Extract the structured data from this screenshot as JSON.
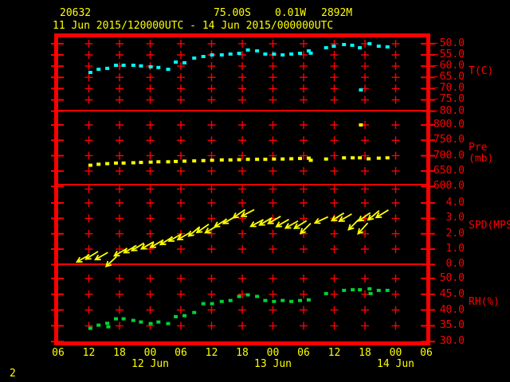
{
  "header": {
    "station_id": "20632",
    "latitude": "75.00S",
    "longitude": "0.01W",
    "elevation": "2892M",
    "period": "11 Jun 2015/120000UTC - 14 Jun 2015/000000UTC"
  },
  "footer": {
    "page_number": "2"
  },
  "colors": {
    "background": "#000000",
    "frame": "#ff0000",
    "axis_text": "#ff0000",
    "header_text": "#ffff00",
    "temperature": "#00ffff",
    "pressure": "#ffff00",
    "wind": "#ffff00",
    "humidity": "#00d435"
  },
  "chart_data": {
    "type": "scatter",
    "subtype": "station-meteogram-4-panel",
    "title": "20632  75.00S 0.01W 2892M  11 Jun 2015/120000UTC - 14 Jun 2015/000000UTC",
    "x_axis": {
      "description": "time, hours from 06UTC 11 Jun 2015 (left edge) to 06UTC 14 Jun 2015 (right edge)",
      "grid_hours": [
        6,
        12,
        18,
        24,
        30,
        36,
        42,
        48,
        54,
        60,
        66
      ],
      "hour_labels": [
        {
          "t": 0,
          "label": "06"
        },
        {
          "t": 6,
          "label": "12"
        },
        {
          "t": 12,
          "label": "18"
        },
        {
          "t": 18,
          "label": "00"
        },
        {
          "t": 24,
          "label": "06"
        },
        {
          "t": 30,
          "label": "12"
        },
        {
          "t": 36,
          "label": "18"
        },
        {
          "t": 42,
          "label": "00"
        },
        {
          "t": 48,
          "label": "06"
        },
        {
          "t": 54,
          "label": "12"
        },
        {
          "t": 60,
          "label": "18"
        },
        {
          "t": 66,
          "label": "00"
        },
        {
          "t": 72,
          "label": "06"
        }
      ],
      "date_labels": [
        {
          "t": 18,
          "label": "12 Jun"
        },
        {
          "t": 42,
          "label": "13 Jun"
        },
        {
          "t": 66,
          "label": "14 Jun"
        }
      ]
    },
    "panels": [
      {
        "id": "temperature",
        "unit_label": "T(C)",
        "color": "#00ffff",
        "marker": "square",
        "top_value": -47.2,
        "bottom_value": -79.8,
        "ticks": [
          {
            "value": -50,
            "label": "-50.0"
          },
          {
            "value": -55,
            "label": "-55.0"
          },
          {
            "value": -60,
            "label": "-60.0"
          },
          {
            "value": -65,
            "label": "-65.0"
          },
          {
            "value": -70,
            "label": "-70.0"
          },
          {
            "value": -75,
            "label": "-75.0"
          },
          {
            "value": -80,
            "label": "-80.0"
          }
        ],
        "grid_rows": [
          -50,
          -55,
          -60,
          -65,
          -70,
          -75
        ],
        "points": [
          [
            6.3,
            -62.8
          ],
          [
            7.9,
            -61.4
          ],
          [
            9.6,
            -61.0
          ],
          [
            11.3,
            -59.6
          ],
          [
            12.8,
            -59.6
          ],
          [
            14.7,
            -59.6
          ],
          [
            16.2,
            -59.9
          ],
          [
            18.1,
            -60.3
          ],
          [
            19.6,
            -60.6
          ],
          [
            21.5,
            -61.4
          ],
          [
            23.0,
            -58.2
          ],
          [
            24.7,
            -58.5
          ],
          [
            26.6,
            -56.4
          ],
          [
            28.4,
            -55.7
          ],
          [
            30.1,
            -55.0
          ],
          [
            32.0,
            -55.0
          ],
          [
            33.7,
            -54.6
          ],
          [
            35.4,
            -54.3
          ],
          [
            37.1,
            -52.8
          ],
          [
            38.9,
            -53.2
          ],
          [
            40.5,
            -54.6
          ],
          [
            42.2,
            -54.6
          ],
          [
            43.9,
            -55.0
          ],
          [
            45.6,
            -54.6
          ],
          [
            47.3,
            -54.3
          ],
          [
            49.0,
            -53.2
          ],
          [
            49.4,
            -54.2
          ],
          [
            52.4,
            -51.8
          ],
          [
            53.9,
            -51.1
          ],
          [
            55.9,
            -50.4
          ],
          [
            57.5,
            -50.7
          ],
          [
            59.0,
            -51.8
          ],
          [
            60.9,
            -50.0
          ],
          [
            62.7,
            -51.1
          ],
          [
            64.4,
            -51.4
          ]
        ],
        "outliers": [
          [
            59.2,
            -70.6
          ]
        ]
      },
      {
        "id": "pressure",
        "unit_label": "Pre (mb)",
        "color": "#ffff00",
        "marker": "square",
        "top_value": 846.6,
        "bottom_value": 605.7,
        "ticks": [
          {
            "value": 800,
            "label": "800.0"
          },
          {
            "value": 750,
            "label": "750.0"
          },
          {
            "value": 700,
            "label": "700.0"
          },
          {
            "value": 650,
            "label": "650.0"
          },
          {
            "value": 600,
            "label": "600.0"
          }
        ],
        "grid_rows": [
          800,
          750,
          700,
          650
        ],
        "points": [
          [
            6.3,
            669
          ],
          [
            7.9,
            672
          ],
          [
            9.6,
            674
          ],
          [
            11.3,
            676
          ],
          [
            12.8,
            676
          ],
          [
            14.7,
            677
          ],
          [
            16.2,
            678
          ],
          [
            18.1,
            679
          ],
          [
            19.6,
            680
          ],
          [
            21.5,
            680
          ],
          [
            23.0,
            681
          ],
          [
            24.7,
            682
          ],
          [
            26.6,
            683
          ],
          [
            28.4,
            684
          ],
          [
            30.1,
            685
          ],
          [
            32.0,
            686
          ],
          [
            33.7,
            686
          ],
          [
            35.4,
            687
          ],
          [
            37.1,
            688
          ],
          [
            38.9,
            688
          ],
          [
            40.5,
            688
          ],
          [
            42.2,
            689
          ],
          [
            43.9,
            689
          ],
          [
            45.6,
            690
          ],
          [
            47.3,
            691
          ],
          [
            49.0,
            692
          ],
          [
            49.4,
            685
          ],
          [
            52.4,
            689
          ],
          [
            55.9,
            693
          ],
          [
            57.6,
            693
          ],
          [
            59.0,
            693
          ],
          [
            60.7,
            690
          ],
          [
            62.7,
            692
          ],
          [
            64.4,
            693
          ]
        ],
        "outliers": [
          [
            59.2,
            800
          ]
        ]
      },
      {
        "id": "wind_speed",
        "unit_label": "SPD(MPS)",
        "color": "#ffff00",
        "marker": "arrow",
        "top_value": 5.19,
        "bottom_value": 0.02,
        "ticks": [
          {
            "value": 4,
            "label": "4.0"
          },
          {
            "value": 3,
            "label": "3.0"
          },
          {
            "value": 2,
            "label": "2.0"
          },
          {
            "value": 1,
            "label": "1.0"
          },
          {
            "value": 0,
            "label": "0.0"
          }
        ],
        "grid_rows": [
          4.9,
          4,
          3,
          2,
          1
        ],
        "points": [
          [
            4.9,
            0.4,
            150
          ],
          [
            6.6,
            0.6,
            148
          ],
          [
            8.5,
            0.55,
            150
          ],
          [
            10.4,
            0.2,
            137
          ],
          [
            12.2,
            0.8,
            150
          ],
          [
            14.1,
            1.0,
            150
          ],
          [
            15.6,
            1.15,
            148
          ],
          [
            17.5,
            1.25,
            150
          ],
          [
            19.3,
            1.35,
            150
          ],
          [
            21.2,
            1.55,
            148
          ],
          [
            22.9,
            1.75,
            150
          ],
          [
            24.6,
            1.85,
            150
          ],
          [
            26.6,
            2.15,
            140
          ],
          [
            28.3,
            2.35,
            145
          ],
          [
            30.0,
            2.3,
            150
          ],
          [
            31.8,
            2.7,
            148
          ],
          [
            33.5,
            2.9,
            150
          ],
          [
            35.4,
            3.3,
            145
          ],
          [
            37.1,
            3.35,
            152
          ],
          [
            38.9,
            2.7,
            152
          ],
          [
            40.6,
            2.8,
            150
          ],
          [
            42.3,
            2.9,
            150
          ],
          [
            43.9,
            2.7,
            150
          ],
          [
            45.7,
            2.6,
            150
          ],
          [
            47.4,
            2.6,
            148
          ],
          [
            48.4,
            2.35,
            135
          ],
          [
            51.5,
            2.9,
            155
          ],
          [
            54.7,
            3.1,
            148
          ],
          [
            56.2,
            3.05,
            150
          ],
          [
            57.8,
            2.6,
            135
          ],
          [
            59.6,
            2.35,
            132
          ],
          [
            59.9,
            3.1,
            145
          ],
          [
            61.7,
            3.2,
            140
          ],
          [
            63.4,
            3.3,
            148
          ]
        ],
        "outliers": []
      },
      {
        "id": "humidity",
        "unit_label": "RH(%)",
        "color": "#00d435",
        "marker": "square",
        "top_value": 54.5,
        "bottom_value": 30.05,
        "ticks": [
          {
            "value": 50,
            "label": "50.0"
          },
          {
            "value": 45,
            "label": "45.0"
          },
          {
            "value": 40,
            "label": "40.0"
          },
          {
            "value": 35,
            "label": "35.0"
          },
          {
            "value": 30,
            "label": "30.0"
          }
        ],
        "grid_rows": [
          50,
          45,
          40,
          35
        ],
        "points": [
          [
            6.3,
            34.2
          ],
          [
            7.9,
            35.2
          ],
          [
            9.6,
            35.8
          ],
          [
            9.8,
            34.7
          ],
          [
            11.3,
            37.2
          ],
          [
            12.8,
            37.2
          ],
          [
            14.7,
            36.7
          ],
          [
            16.2,
            36.2
          ],
          [
            18.1,
            35.7
          ],
          [
            19.6,
            36.2
          ],
          [
            21.5,
            35.7
          ],
          [
            23.0,
            37.9
          ],
          [
            24.7,
            38.2
          ],
          [
            26.6,
            39.2
          ],
          [
            28.4,
            42.0
          ],
          [
            30.1,
            42.0
          ],
          [
            32.0,
            42.7
          ],
          [
            33.7,
            43.0
          ],
          [
            35.4,
            44.3
          ],
          [
            37.1,
            44.8
          ],
          [
            38.9,
            44.3
          ],
          [
            40.5,
            43.0
          ],
          [
            42.2,
            42.7
          ],
          [
            43.9,
            43.0
          ],
          [
            45.6,
            42.7
          ],
          [
            47.3,
            43.0
          ],
          [
            49.0,
            43.2
          ],
          [
            52.4,
            45.2
          ],
          [
            55.9,
            46.2
          ],
          [
            57.6,
            46.4
          ],
          [
            59.0,
            46.4
          ],
          [
            60.9,
            46.7
          ],
          [
            61.1,
            45.2
          ],
          [
            62.7,
            46.2
          ],
          [
            64.4,
            46.2
          ]
        ],
        "outliers": []
      }
    ]
  }
}
